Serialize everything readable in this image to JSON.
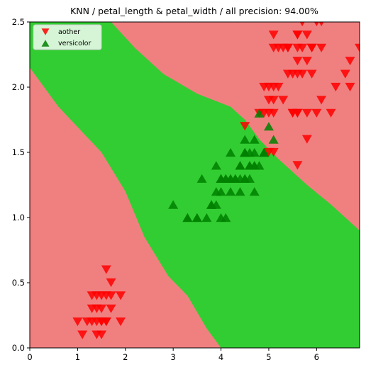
{
  "chart_data": {
    "type": "scatter",
    "title": "KNN / petal_length & petal_width / all precision: 94.00%",
    "xlabel": "",
    "ylabel": "",
    "xlim": [
      0,
      6.9
    ],
    "ylim": [
      0,
      2.5
    ],
    "x_ticks": [
      "0",
      "1",
      "2",
      "3",
      "4",
      "5",
      "6"
    ],
    "y_ticks": [
      "0.0",
      "0.5",
      "1.0",
      "1.5",
      "2.0",
      "2.5"
    ],
    "grid": false,
    "legend": {
      "placement": "top-left",
      "entries": [
        "aother",
        "versicolor"
      ]
    },
    "background_regions": {
      "aother_color": "#f08080",
      "versicolor_color": "#32cd32",
      "versicolor_region_polygon": [
        [
          0,
          2.15
        ],
        [
          0,
          2.5
        ],
        [
          1.7,
          2.5
        ],
        [
          2.2,
          2.3
        ],
        [
          2.8,
          2.1
        ],
        [
          3.5,
          1.95
        ],
        [
          4.2,
          1.85
        ],
        [
          4.5,
          1.75
        ],
        [
          4.8,
          1.6
        ],
        [
          5.2,
          1.45
        ],
        [
          5.8,
          1.25
        ],
        [
          6.3,
          1.1
        ],
        [
          6.9,
          0.9
        ],
        [
          6.9,
          0
        ],
        [
          4.0,
          0
        ],
        [
          3.7,
          0.15
        ],
        [
          3.3,
          0.4
        ],
        [
          2.9,
          0.55
        ],
        [
          2.4,
          0.85
        ],
        [
          2.0,
          1.2
        ],
        [
          1.5,
          1.5
        ],
        [
          0.6,
          1.85
        ]
      ]
    },
    "series": [
      {
        "name": "aother",
        "marker": "triangle-down",
        "color": "#ff0000",
        "points": [
          [
            1.4,
            0.2
          ],
          [
            1.3,
            0.2
          ],
          [
            1.5,
            0.2
          ],
          [
            1.7,
            0.4
          ],
          [
            1.4,
            0.3
          ],
          [
            1.5,
            0.1
          ],
          [
            1.6,
            0.2
          ],
          [
            1.4,
            0.1
          ],
          [
            1.1,
            0.1
          ],
          [
            1.2,
            0.2
          ],
          [
            1.3,
            0.4
          ],
          [
            1.7,
            0.3
          ],
          [
            1.5,
            0.3
          ],
          [
            1.0,
            0.2
          ],
          [
            1.9,
            0.4
          ],
          [
            1.6,
            0.4
          ],
          [
            1.3,
            0.3
          ],
          [
            1.5,
            0.4
          ],
          [
            1.6,
            0.6
          ],
          [
            1.9,
            0.2
          ],
          [
            1.6,
            0.2
          ],
          [
            1.7,
            0.5
          ],
          [
            1.4,
            0.4
          ],
          [
            1.5,
            0.2
          ],
          [
            6.0,
            2.5
          ],
          [
            5.1,
            1.9
          ],
          [
            5.9,
            2.1
          ],
          [
            5.6,
            1.8
          ],
          [
            5.8,
            2.2
          ],
          [
            6.6,
            2.1
          ],
          [
            4.5,
            1.7
          ],
          [
            6.3,
            1.8
          ],
          [
            5.8,
            1.8
          ],
          [
            6.1,
            2.5
          ],
          [
            5.3,
            1.9
          ],
          [
            5.5,
            2.1
          ],
          [
            5.0,
            2.0
          ],
          [
            5.1,
            2.4
          ],
          [
            5.3,
            2.3
          ],
          [
            5.5,
            1.8
          ],
          [
            6.7,
            2.2
          ],
          [
            6.9,
            2.3
          ],
          [
            5.0,
            1.5
          ],
          [
            5.7,
            2.3
          ],
          [
            4.9,
            2.0
          ],
          [
            6.7,
            2.0
          ],
          [
            4.9,
            1.8
          ],
          [
            5.7,
            2.1
          ],
          [
            6.0,
            1.8
          ],
          [
            4.8,
            1.8
          ],
          [
            5.6,
            2.1
          ],
          [
            6.1,
            1.9
          ],
          [
            6.4,
            2.0
          ],
          [
            5.6,
            2.2
          ],
          [
            5.1,
            1.5
          ],
          [
            5.6,
            1.4
          ],
          [
            6.1,
            2.3
          ],
          [
            5.6,
            2.4
          ],
          [
            5.5,
            1.8
          ],
          [
            5.4,
            2.1
          ],
          [
            5.6,
            2.4
          ],
          [
            5.1,
            2.3
          ],
          [
            5.9,
            2.3
          ],
          [
            5.7,
            2.5
          ],
          [
            5.2,
            2.3
          ],
          [
            5.0,
            1.9
          ],
          [
            5.2,
            2.0
          ],
          [
            5.4,
            2.3
          ],
          [
            5.1,
            1.8
          ],
          [
            5.8,
            1.6
          ],
          [
            5.4,
            2.3
          ],
          [
            5.6,
            1.8
          ],
          [
            5.9,
            2.3
          ],
          [
            5.0,
            1.8
          ],
          [
            5.1,
            2.0
          ],
          [
            5.8,
            2.4
          ],
          [
            5.6,
            2.3
          ]
        ]
      },
      {
        "name": "versicolor",
        "marker": "triangle-up",
        "color": "#008000",
        "points": [
          [
            4.7,
            1.4
          ],
          [
            4.5,
            1.5
          ],
          [
            4.9,
            1.5
          ],
          [
            4.0,
            1.3
          ],
          [
            4.6,
            1.5
          ],
          [
            4.5,
            1.3
          ],
          [
            4.7,
            1.6
          ],
          [
            3.3,
            1.0
          ],
          [
            4.6,
            1.3
          ],
          [
            3.9,
            1.4
          ],
          [
            3.5,
            1.0
          ],
          [
            4.2,
            1.5
          ],
          [
            4.0,
            1.0
          ],
          [
            4.7,
            1.4
          ],
          [
            3.6,
            1.3
          ],
          [
            4.4,
            1.4
          ],
          [
            4.5,
            1.5
          ],
          [
            4.1,
            1.0
          ],
          [
            4.5,
            1.5
          ],
          [
            3.9,
            1.1
          ],
          [
            4.8,
            1.8
          ],
          [
            4.0,
            1.3
          ],
          [
            4.9,
            1.5
          ],
          [
            4.7,
            1.2
          ],
          [
            4.3,
            1.3
          ],
          [
            4.4,
            1.4
          ],
          [
            4.8,
            1.4
          ],
          [
            5.0,
            1.7
          ],
          [
            4.5,
            1.5
          ],
          [
            3.5,
            1.0
          ],
          [
            3.8,
            1.1
          ],
          [
            3.7,
            1.0
          ],
          [
            3.9,
            1.2
          ],
          [
            5.1,
            1.6
          ],
          [
            4.5,
            1.5
          ],
          [
            4.5,
            1.6
          ],
          [
            4.7,
            1.5
          ],
          [
            4.4,
            1.3
          ],
          [
            4.1,
            1.3
          ],
          [
            4.0,
            1.3
          ],
          [
            4.4,
            1.2
          ],
          [
            4.6,
            1.4
          ],
          [
            4.0,
            1.2
          ],
          [
            3.3,
            1.0
          ],
          [
            4.2,
            1.3
          ],
          [
            4.2,
            1.2
          ],
          [
            4.2,
            1.3
          ],
          [
            4.3,
            1.3
          ],
          [
            3.0,
            1.1
          ],
          [
            4.1,
            1.3
          ],
          [
            4.6,
            1.4
          ],
          [
            4.9,
            1.5
          ],
          [
            3.8,
            1.1
          ],
          [
            4.5,
            1.3
          ]
        ]
      }
    ]
  }
}
